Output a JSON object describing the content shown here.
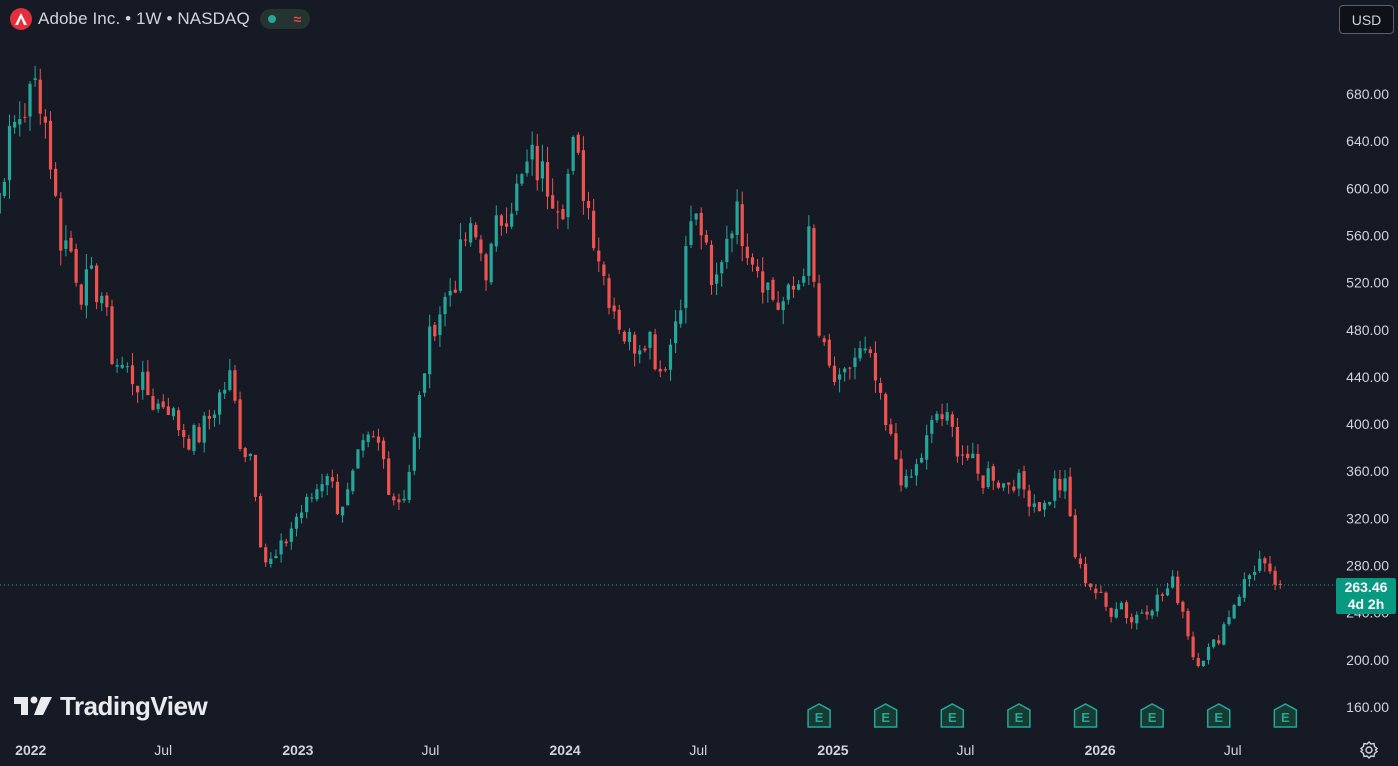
{
  "header": {
    "symbol_title": "Adobe Inc. • 1W • NASDAQ",
    "logo_letter": "A",
    "approx_glyph": "≈"
  },
  "currency_button": "USD",
  "brand": "TradingView",
  "last_price": {
    "value": "263.46",
    "countdown": "4d 2h"
  },
  "earnings_marker_label": "E",
  "colors": {
    "background": "#161a25",
    "up": "#26a69a",
    "down": "#ef5350",
    "last_price_badge": "#089981",
    "logo": "#e52e3c"
  },
  "icons": [
    "adobe-logo-icon",
    "market-open-icon",
    "delay-icon",
    "tradingview-logo-icon",
    "settings-icon",
    "earnings-icon"
  ],
  "chart_data": {
    "type": "candlestick",
    "interval": "1W",
    "y_axis": {
      "ticks": [
        160,
        200,
        240,
        280,
        320,
        360,
        400,
        440,
        480,
        520,
        560,
        600,
        640,
        680
      ],
      "tick_labels": [
        "160.00",
        "200.00",
        "240.00",
        "280.00",
        "320.00",
        "360.00",
        "400.00",
        "440.00",
        "480.00",
        "520.00",
        "560.00",
        "600.00",
        "640.00",
        "680.00"
      ]
    },
    "x_axis": {
      "labels": [
        "2022",
        "Jul",
        "2023",
        "Jul",
        "2024",
        "Jul",
        "2025",
        "Jul",
        "2026",
        "Jul"
      ],
      "label_dates": [
        "2022-01-01",
        "2022-07-01",
        "2023-01-01",
        "2023-07-01",
        "2024-01-01",
        "2024-07-01",
        "2025-01-01",
        "2025-07-01",
        "2026-01-01",
        "2026-07-01"
      ],
      "range": [
        "2021-11-20",
        "2026-10-01"
      ]
    },
    "candle_trend_closes": [
      [
        652,
        610,
        575,
        628,
        658,
        672,
        692,
        640,
        560,
        550,
        515,
        520,
        510,
        455,
        448,
        438,
        430,
        415,
        420,
        400,
        388,
        390,
        405,
        425,
        440,
        380,
        375,
        285,
        282,
        298,
        320,
        330,
        345,
        362,
        330,
        340,
        372,
        385,
        380,
        340,
        335,
        375,
        445,
        488,
        505,
        525,
        560,
        555,
        530,
        572,
        588,
        600,
        625,
        612,
        600,
        590,
        632,
        600,
        560,
        520,
        495,
        470,
        470,
        480,
        445,
        465,
        510,
        575,
        565,
        505,
        552,
        582,
        560,
        540,
        520,
        500,
        505,
        520,
        555,
        470,
        442,
        428,
        455,
        460,
        445,
        400,
        375,
        345,
        362,
        385,
        410,
        400,
        380,
        370,
        350,
        362,
        348,
        355,
        345,
        335,
        330,
        350,
        345,
        280,
        268,
        255,
        240,
        252,
        232,
        242,
        248,
        255,
        265,
        240,
        198,
        205,
        215,
        235,
        255,
        270,
        285,
        268,
        263.46
      ]
    ],
    "earnings_dates": [
      "2024-12-13",
      "2025-03-14",
      "2025-06-13",
      "2025-09-12",
      "2025-12-12",
      "2026-03-13",
      "2026-06-12",
      "2026-09-11"
    ]
  }
}
